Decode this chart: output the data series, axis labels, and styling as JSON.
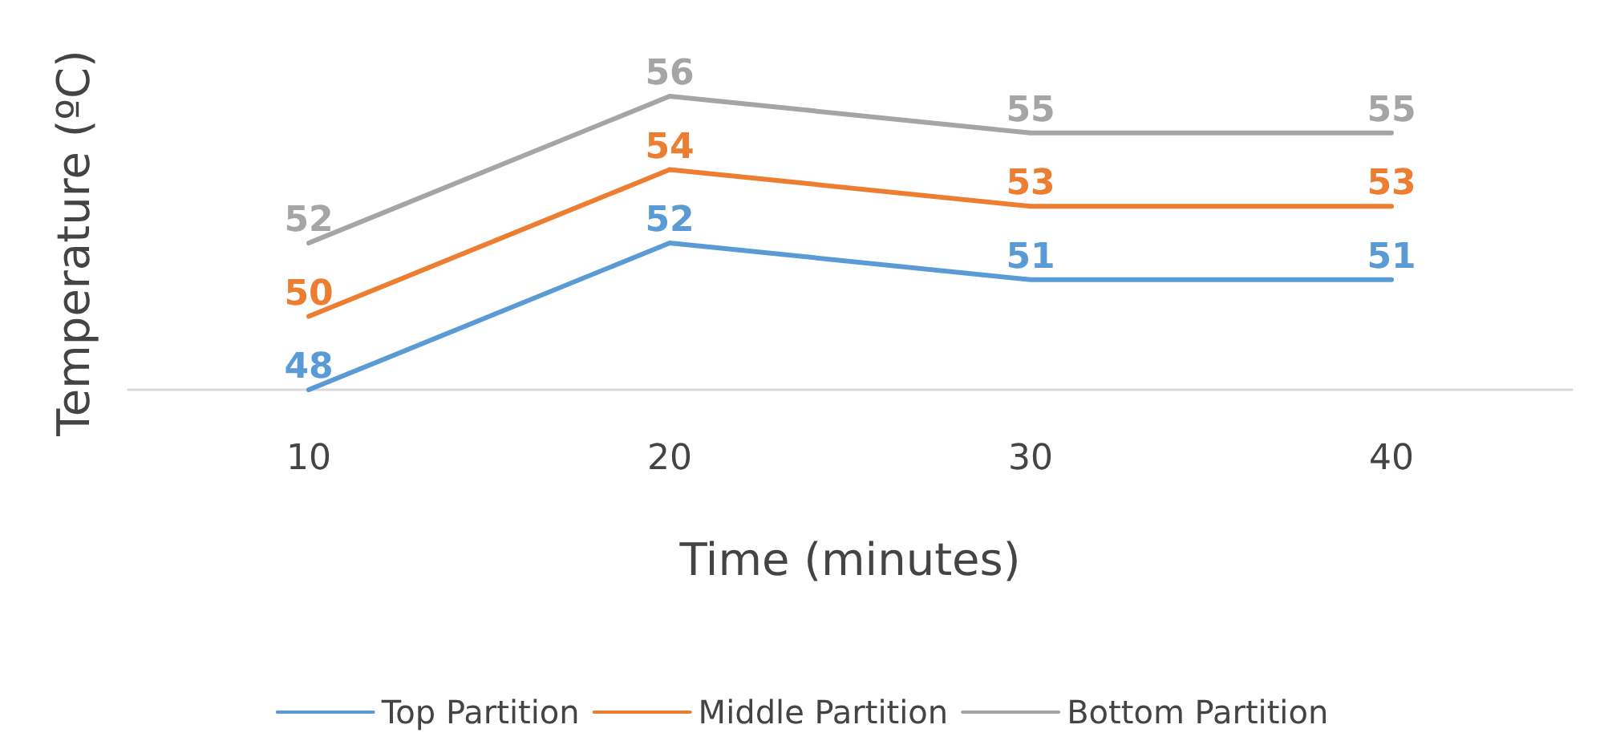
{
  "chart_data": {
    "type": "line",
    "xlabel": "Time (minutes)",
    "ylabel": "Temperature (ºC)",
    "categories": [
      "10",
      "20",
      "30",
      "40"
    ],
    "series": [
      {
        "name": "Top Partition",
        "color": "#5b9bd5",
        "values": [
          48,
          52,
          51,
          51
        ]
      },
      {
        "name": "Middle Partition",
        "color": "#ed7d31",
        "values": [
          50,
          54,
          53,
          53
        ]
      },
      {
        "name": "Bottom Partition",
        "color": "#a5a5a5",
        "values": [
          52,
          56,
          55,
          55
        ]
      }
    ],
    "data_labels": true,
    "legend": "bottom",
    "marker": "none",
    "line_style": "solid",
    "grid": false
  }
}
